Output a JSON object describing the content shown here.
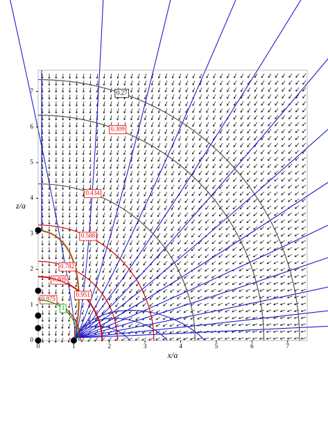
{
  "chart_data": {
    "type": "field",
    "xlabel": "x/a",
    "ylabel": "z/a",
    "xlim": [
      0,
      7.55
    ],
    "ylim": [
      0,
      7.6
    ],
    "xticks": [
      0,
      1,
      2,
      3,
      4,
      5,
      6,
      7
    ],
    "yticks": [
      0,
      1,
      2,
      3,
      4,
      5,
      6,
      7
    ],
    "contours": [
      {
        "level": 0.27,
        "x": 2.35,
        "z": 6.95,
        "color": "#555555",
        "label_color": "#000000"
      },
      {
        "level": 0.309,
        "x": 2.23,
        "z": 5.93,
        "color": "#555555",
        "label_color": "#e00000"
      },
      {
        "level": 0.434,
        "x": 1.53,
        "z": 4.13,
        "color": "#555555",
        "label_color": "#e00000"
      },
      {
        "level": 0.588,
        "x": 1.4,
        "z": 2.93,
        "color": "#d00000",
        "label_color": "#e00000"
      },
      {
        "level": 0.782,
        "x": 0.82,
        "z": 2.07,
        "color": "#d00000",
        "label_color": "#e00000"
      },
      {
        "level": 0.809,
        "x": 0.6,
        "z": 1.7,
        "color": "#d00000",
        "label_color": "#e00000"
      },
      {
        "level": 0.951,
        "x": 1.26,
        "z": 1.27,
        "color": "#d00000",
        "label_color": "#e00000"
      },
      {
        "level": 0.975,
        "x": 0.29,
        "z": 1.15,
        "color": "#d00000",
        "label_color": "#e00000"
      },
      {
        "level": 1,
        "x": 0.7,
        "z": 0.9,
        "color": "#00a000",
        "label_color": "#00a000"
      }
    ],
    "points": [
      {
        "x": 0,
        "z": 0
      },
      {
        "x": 0,
        "z": 0.35
      },
      {
        "x": 0,
        "z": 0.7
      },
      {
        "x": 0,
        "z": 1.4
      },
      {
        "x": 0,
        "z": 3.1
      },
      {
        "x": 1,
        "z": 0
      }
    ]
  }
}
